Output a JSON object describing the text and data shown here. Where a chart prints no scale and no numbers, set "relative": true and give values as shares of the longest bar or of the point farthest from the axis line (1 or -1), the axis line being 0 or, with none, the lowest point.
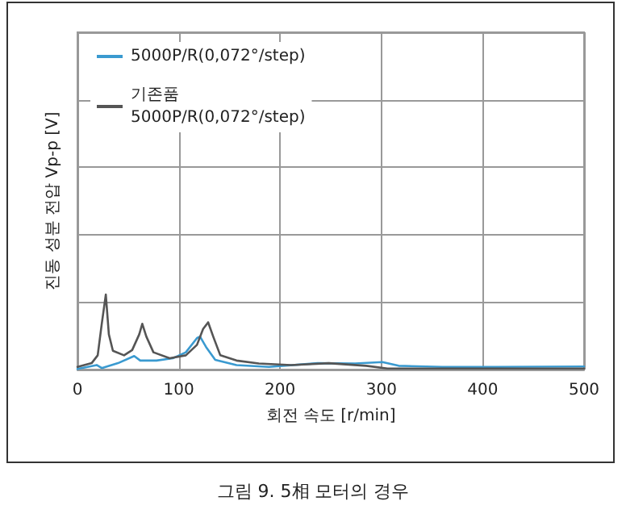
{
  "chart_data": {
    "type": "line",
    "relative": true,
    "xlabel": "회전 속도 [r/min]",
    "ylabel": "진동 성분 전압 Vp-p [V]",
    "annotations": [
      "그림 9. 5相 모터의 경우"
    ],
    "xlim": [
      0,
      500
    ],
    "xticks": [
      0,
      100,
      200,
      300,
      400,
      500
    ],
    "grid": true,
    "legend": "top left",
    "marker": "none",
    "line_style": "solid",
    "series": [
      {
        "name": "5000P/R(0,072°/step)",
        "color": "#3a9ad0",
        "x": [
          0,
          19,
          24,
          40,
          56,
          62,
          78,
          94,
          107,
          118,
          121,
          127,
          136,
          157,
          189,
          237,
          274,
          301,
          317,
          360,
          413,
          500
        ],
        "values": [
          0.007,
          0.06,
          0.02,
          0.085,
          0.18,
          0.12,
          0.12,
          0.15,
          0.23,
          0.42,
          0.44,
          0.3,
          0.13,
          0.06,
          0.035,
          0.085,
          0.08,
          0.1,
          0.05,
          0.035,
          0.035,
          0.04
        ]
      },
      {
        "name": "기존품\n5000P/R(0,072°/step)",
        "color": "#555555",
        "x": [
          0,
          14,
          20,
          24,
          28,
          31,
          35,
          46,
          54,
          61,
          64,
          68,
          75,
          91,
          107,
          118,
          124,
          129,
          134,
          141,
          157,
          179,
          211,
          248,
          285,
          306,
          360,
          500
        ],
        "values": [
          0.035,
          0.085,
          0.19,
          0.61,
          1,
          0.47,
          0.25,
          0.19,
          0.26,
          0.47,
          0.61,
          0.44,
          0.23,
          0.15,
          0.19,
          0.33,
          0.54,
          0.63,
          0.44,
          0.19,
          0.12,
          0.08,
          0.06,
          0.085,
          0.05,
          0.014,
          0.014,
          0.014
        ]
      }
    ]
  }
}
